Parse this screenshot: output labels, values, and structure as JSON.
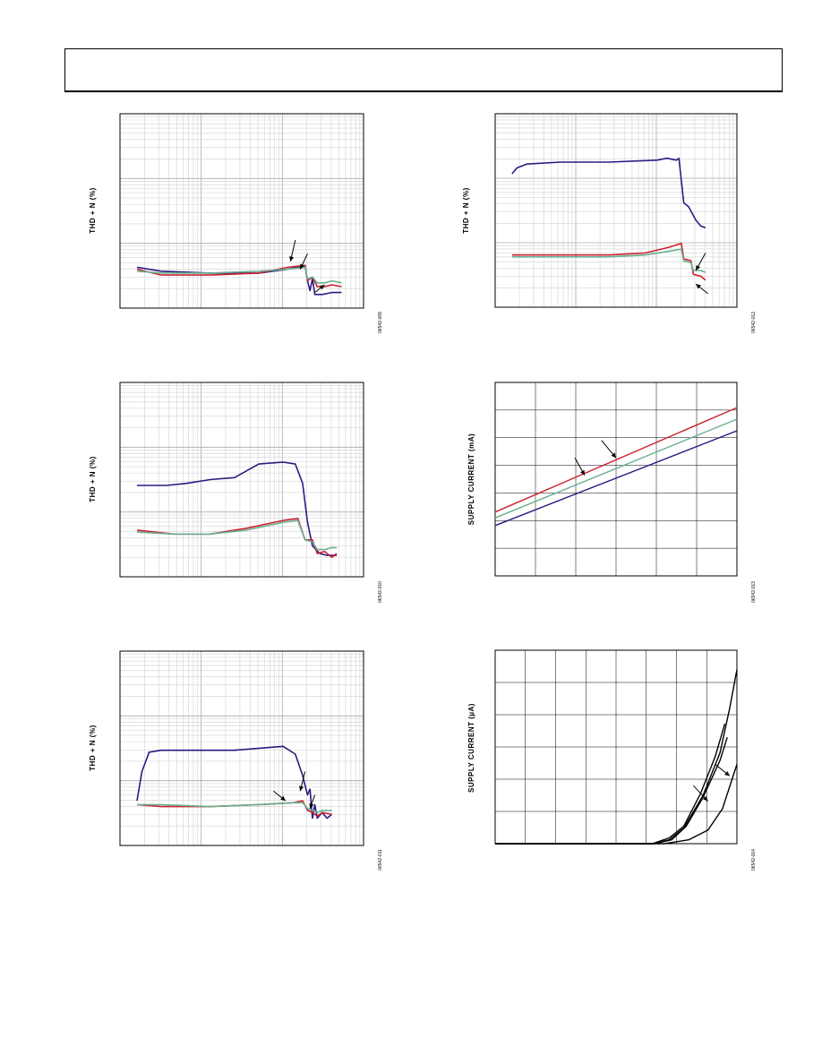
{
  "header": {
    "text": ""
  },
  "charts": [
    {
      "id": "c009",
      "fig_id": "06542-009",
      "ylabel": "THD + N (%)",
      "chart_data": {
        "type": "line",
        "scale": "log-log",
        "title": "",
        "xlabel": "",
        "ylabel": "THD + N (%)",
        "grid": true,
        "series": [
          {
            "color": "#2a1a80",
            "points": [
              [
                0,
                0.79
              ],
              [
                0.1,
                0.81
              ],
              [
                0.3,
                0.82
              ],
              [
                0.5,
                0.82
              ],
              [
                0.62,
                0.8
              ],
              [
                0.69,
                0.78
              ],
              [
                0.7,
                0.86
              ],
              [
                0.71,
                0.91
              ],
              [
                0.72,
                0.85
              ],
              [
                0.73,
                0.93
              ],
              [
                0.76,
                0.93
              ],
              [
                0.8,
                0.92
              ],
              [
                0.84,
                0.92
              ]
            ]
          },
          {
            "color": "#cc2030",
            "points": [
              [
                0,
                0.8
              ],
              [
                0.1,
                0.83
              ],
              [
                0.3,
                0.83
              ],
              [
                0.5,
                0.82
              ],
              [
                0.62,
                0.79
              ],
              [
                0.69,
                0.78
              ],
              [
                0.7,
                0.86
              ],
              [
                0.72,
                0.84
              ],
              [
                0.74,
                0.89
              ],
              [
                0.77,
                0.89
              ],
              [
                0.8,
                0.88
              ],
              [
                0.84,
                0.89
              ]
            ]
          },
          {
            "color": "#6ab090",
            "points": [
              [
                0,
                0.81
              ],
              [
                0.1,
                0.82
              ],
              [
                0.3,
                0.82
              ],
              [
                0.5,
                0.81
              ],
              [
                0.62,
                0.8
              ],
              [
                0.69,
                0.79
              ],
              [
                0.7,
                0.85
              ],
              [
                0.72,
                0.84
              ],
              [
                0.74,
                0.87
              ],
              [
                0.77,
                0.87
              ],
              [
                0.8,
                0.86
              ],
              [
                0.84,
                0.87
              ]
            ]
          }
        ],
        "arrows": [
          [
            [
              0.72,
              0.65
            ],
            [
              0.7,
              0.76
            ]
          ],
          [
            [
              0.77,
              0.72
            ],
            [
              0.74,
              0.8
            ]
          ],
          [
            [
              0.8,
              0.92
            ],
            [
              0.84,
              0.88
            ]
          ]
        ]
      }
    },
    {
      "id": "c010",
      "fig_id": "06542-010",
      "ylabel": "THD + N (%)",
      "chart_data": {
        "type": "line",
        "scale": "log-log",
        "title": "",
        "xlabel": "",
        "ylabel": "THD + N (%)",
        "grid": true,
        "series": [
          {
            "color": "#2a1a80",
            "points": [
              [
                0,
                0.53
              ],
              [
                0.12,
                0.53
              ],
              [
                0.2,
                0.52
              ],
              [
                0.3,
                0.5
              ],
              [
                0.4,
                0.49
              ],
              [
                0.5,
                0.42
              ],
              [
                0.6,
                0.41
              ],
              [
                0.65,
                0.42
              ],
              [
                0.68,
                0.52
              ],
              [
                0.7,
                0.72
              ],
              [
                0.72,
                0.84
              ],
              [
                0.75,
                0.88
              ],
              [
                0.78,
                0.89
              ],
              [
                0.82,
                0.89
              ]
            ]
          },
          {
            "color": "#cc2030",
            "points": [
              [
                0,
                0.76
              ],
              [
                0.15,
                0.78
              ],
              [
                0.3,
                0.78
              ],
              [
                0.45,
                0.75
              ],
              [
                0.6,
                0.71
              ],
              [
                0.66,
                0.7
              ],
              [
                0.69,
                0.81
              ],
              [
                0.72,
                0.81
              ],
              [
                0.74,
                0.88
              ],
              [
                0.77,
                0.87
              ],
              [
                0.8,
                0.9
              ],
              [
                0.82,
                0.88
              ]
            ]
          },
          {
            "color": "#6ab090",
            "points": [
              [
                0,
                0.77
              ],
              [
                0.15,
                0.78
              ],
              [
                0.3,
                0.78
              ],
              [
                0.45,
                0.76
              ],
              [
                0.6,
                0.72
              ],
              [
                0.66,
                0.71
              ],
              [
                0.69,
                0.81
              ],
              [
                0.72,
                0.82
              ],
              [
                0.74,
                0.86
              ],
              [
                0.77,
                0.86
              ],
              [
                0.8,
                0.85
              ],
              [
                0.82,
                0.85
              ]
            ]
          }
        ],
        "arrows": []
      }
    },
    {
      "id": "c011",
      "fig_id": "06542-011",
      "ylabel": "THD + N (%)",
      "chart_data": {
        "type": "line",
        "scale": "log-log",
        "title": "",
        "xlabel": "",
        "ylabel": "THD + N (%)",
        "grid": true,
        "series": [
          {
            "color": "#2a1a80",
            "points": [
              [
                0,
                0.77
              ],
              [
                0.02,
                0.62
              ],
              [
                0.05,
                0.52
              ],
              [
                0.1,
                0.51
              ],
              [
                0.2,
                0.51
              ],
              [
                0.4,
                0.51
              ],
              [
                0.6,
                0.49
              ],
              [
                0.65,
                0.53
              ],
              [
                0.68,
                0.64
              ],
              [
                0.7,
                0.74
              ],
              [
                0.71,
                0.71
              ],
              [
                0.72,
                0.86
              ],
              [
                0.73,
                0.79
              ],
              [
                0.74,
                0.86
              ],
              [
                0.76,
                0.83
              ],
              [
                0.78,
                0.86
              ],
              [
                0.8,
                0.84
              ]
            ]
          },
          {
            "color": "#cc2030",
            "points": [
              [
                0,
                0.79
              ],
              [
                0.1,
                0.8
              ],
              [
                0.3,
                0.8
              ],
              [
                0.5,
                0.79
              ],
              [
                0.64,
                0.78
              ],
              [
                0.68,
                0.77
              ],
              [
                0.7,
                0.82
              ],
              [
                0.72,
                0.83
              ],
              [
                0.74,
                0.85
              ],
              [
                0.76,
                0.83
              ],
              [
                0.8,
                0.84
              ]
            ]
          },
          {
            "color": "#6ab090",
            "points": [
              [
                0,
                0.79
              ],
              [
                0.1,
                0.79
              ],
              [
                0.3,
                0.8
              ],
              [
                0.5,
                0.79
              ],
              [
                0.64,
                0.78
              ],
              [
                0.68,
                0.78
              ],
              [
                0.7,
                0.81
              ],
              [
                0.72,
                0.82
              ],
              [
                0.74,
                0.83
              ],
              [
                0.76,
                0.82
              ],
              [
                0.8,
                0.82
              ]
            ]
          }
        ],
        "arrows": [
          [
            [
              0.76,
              0.62
            ],
            [
              0.74,
              0.72
            ]
          ],
          [
            [
              0.63,
              0.72
            ],
            [
              0.68,
              0.77
            ]
          ],
          [
            [
              0.8,
              0.74
            ],
            [
              0.78,
              0.81
            ]
          ]
        ]
      }
    },
    {
      "id": "c012",
      "fig_id": "06542-012",
      "ylabel": "THD + N (%)",
      "chart_data": {
        "type": "line",
        "scale": "log-log",
        "title": "",
        "xlabel": "",
        "ylabel": "THD + N (%)",
        "grid": true,
        "series": [
          {
            "color": "#2a1a80",
            "points": [
              [
                0,
                0.31
              ],
              [
                0.02,
                0.28
              ],
              [
                0.06,
                0.26
              ],
              [
                0.2,
                0.25
              ],
              [
                0.4,
                0.25
              ],
              [
                0.6,
                0.24
              ],
              [
                0.64,
                0.23
              ],
              [
                0.68,
                0.24
              ],
              [
                0.69,
                0.23
              ],
              [
                0.71,
                0.46
              ],
              [
                0.73,
                0.48
              ],
              [
                0.76,
                0.55
              ],
              [
                0.78,
                0.58
              ],
              [
                0.8,
                0.59
              ]
            ]
          },
          {
            "color": "#cc2030",
            "points": [
              [
                0,
                0.73
              ],
              [
                0.2,
                0.73
              ],
              [
                0.4,
                0.73
              ],
              [
                0.55,
                0.72
              ],
              [
                0.65,
                0.69
              ],
              [
                0.7,
                0.67
              ],
              [
                0.71,
                0.75
              ],
              [
                0.74,
                0.76
              ],
              [
                0.75,
                0.83
              ],
              [
                0.78,
                0.84
              ],
              [
                0.8,
                0.86
              ]
            ]
          },
          {
            "color": "#6ab090",
            "points": [
              [
                0,
                0.74
              ],
              [
                0.2,
                0.74
              ],
              [
                0.4,
                0.74
              ],
              [
                0.55,
                0.73
              ],
              [
                0.65,
                0.71
              ],
              [
                0.7,
                0.7
              ],
              [
                0.71,
                0.76
              ],
              [
                0.74,
                0.77
              ],
              [
                0.75,
                0.81
              ],
              [
                0.78,
                0.81
              ],
              [
                0.8,
                0.82
              ]
            ]
          }
        ],
        "arrows": [
          [
            [
              0.87,
              0.72
            ],
            [
              0.83,
              0.81
            ]
          ],
          [
            [
              0.88,
              0.93
            ],
            [
              0.83,
              0.88
            ]
          ]
        ]
      }
    },
    {
      "id": "c013",
      "fig_id": "06542-013",
      "ylabel": "SUPPLY CURRENT (mA)",
      "chart_data": {
        "type": "line",
        "scale": "linear",
        "title": "",
        "xlabel": "",
        "ylabel": "SUPPLY CURRENT (mA)",
        "grid": true,
        "grid_cols": 6,
        "grid_rows": 7,
        "series": [
          {
            "color": "#cc2030",
            "points": [
              [
                0,
                0.67
              ],
              [
                1,
                0.13
              ]
            ]
          },
          {
            "color": "#6ab090",
            "points": [
              [
                0,
                0.7
              ],
              [
                1,
                0.19
              ]
            ]
          },
          {
            "color": "#2a1a80",
            "points": [
              [
                0,
                0.74
              ],
              [
                1,
                0.25
              ]
            ]
          }
        ],
        "arrows": [
          [
            [
              0.44,
              0.3
            ],
            [
              0.5,
              0.39
            ]
          ],
          [
            [
              0.33,
              0.39
            ],
            [
              0.37,
              0.48
            ]
          ]
        ]
      }
    },
    {
      "id": "c014",
      "fig_id": "06542-014",
      "ylabel": "SUPPLY CURRENT (µA)",
      "chart_data": {
        "type": "line",
        "scale": "linear",
        "title": "",
        "xlabel": "",
        "ylabel": "SUPPLY CURRENT (µA)",
        "grid": true,
        "grid_cols": 8,
        "grid_rows": 6,
        "series": [
          {
            "color": "#000000",
            "points": [
              [
                0,
                1
              ],
              [
                0.65,
                1
              ],
              [
                0.72,
                0.98
              ],
              [
                0.78,
                0.92
              ],
              [
                0.86,
                0.75
              ],
              [
                0.93,
                0.53
              ],
              [
                0.97,
                0.3
              ],
              [
                1,
                0.1
              ]
            ]
          },
          {
            "color": "#000000",
            "points": [
              [
                0,
                1
              ],
              [
                0.65,
                1
              ],
              [
                0.72,
                0.97
              ],
              [
                0.78,
                0.91
              ],
              [
                0.85,
                0.74
              ],
              [
                0.91,
                0.55
              ],
              [
                0.95,
                0.38
              ]
            ]
          },
          {
            "color": "#000000",
            "points": [
              [
                0,
                1
              ],
              [
                0.66,
                1
              ],
              [
                0.73,
                0.98
              ],
              [
                0.79,
                0.91
              ],
              [
                0.86,
                0.76
              ],
              [
                0.93,
                0.57
              ],
              [
                0.96,
                0.45
              ]
            ]
          },
          {
            "color": "#000000",
            "points": [
              [
                0,
                1
              ],
              [
                0.7,
                1
              ],
              [
                0.8,
                0.98
              ],
              [
                0.88,
                0.93
              ],
              [
                0.94,
                0.82
              ],
              [
                1,
                0.59
              ]
            ]
          }
        ],
        "arrows": [
          [
            [
              0.82,
              0.7
            ],
            [
              0.88,
              0.78
            ]
          ],
          [
            [
              0.91,
              0.59
            ],
            [
              0.97,
              0.65
            ]
          ]
        ]
      }
    }
  ]
}
